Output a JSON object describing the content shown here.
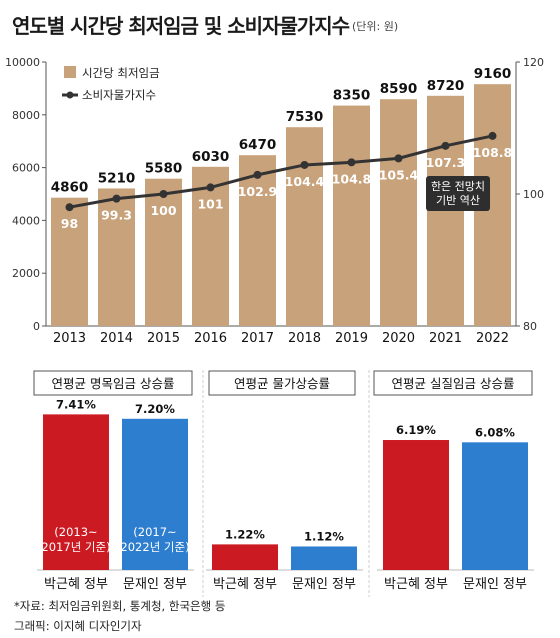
{
  "title": "연도별 시간당 최저임금 및 소비자물가지수",
  "unit": "(단위: 원)",
  "chart_data": [
    {
      "type": "bar+line",
      "categories": [
        "2013",
        "2014",
        "2015",
        "2016",
        "2017",
        "2018",
        "2019",
        "2020",
        "2021",
        "2022"
      ],
      "series": [
        {
          "name": "시간당 최저임금",
          "type": "bar",
          "axis": "left",
          "values": [
            4860,
            5210,
            5580,
            6030,
            6470,
            7530,
            8350,
            8590,
            8720,
            9160
          ]
        },
        {
          "name": "소비자물가지수",
          "type": "line",
          "axis": "right",
          "values": [
            98,
            99.3,
            100,
            101,
            102.9,
            104.4,
            104.8,
            105.4,
            107.3,
            108.8
          ]
        }
      ],
      "value_labels": {
        "bar": [
          "4860",
          "5210",
          "5580",
          "6030",
          "6470",
          "7530",
          "8350",
          "8590",
          "8720",
          "9160"
        ],
        "line": [
          "98",
          "99.3",
          "100",
          "101",
          "102.9",
          "104.4",
          "104.8",
          "105.4",
          "107.3",
          "108.8"
        ]
      },
      "y_left": {
        "range": [
          0,
          10000
        ],
        "ticks": [
          "0",
          "2000",
          "4000",
          "6000",
          "8000",
          "10000"
        ]
      },
      "y_right": {
        "range": [
          80,
          120
        ],
        "ticks": [
          "80",
          "100",
          "120"
        ]
      },
      "legend": [
        "시간당 최저임금",
        "소비자물가지수"
      ],
      "legend_position": "top-left",
      "annotation": "한은 전망치\n기반 역산",
      "colors": {
        "bar": "#c8a27a",
        "line": "#333333",
        "label": "#ffffff",
        "axis": "#555555"
      }
    },
    {
      "type": "bar",
      "title": "연평균 명목임금 상승률",
      "categories": [
        "박근혜 정부",
        "문재인 정부"
      ],
      "values": [
        7.41,
        7.2
      ],
      "value_labels": [
        "7.41%",
        "7.20%"
      ],
      "inner_labels": [
        "(2013~\n2017년 기준)",
        "(2017~\n2022년 기준)"
      ],
      "colors": [
        "#cc1a22",
        "#2e7ed0"
      ]
    },
    {
      "type": "bar",
      "title": "연평균 물가상승률",
      "categories": [
        "박근혜 정부",
        "문재인 정부"
      ],
      "values": [
        1.22,
        1.12
      ],
      "value_labels": [
        "1.22%",
        "1.12%"
      ],
      "colors": [
        "#cc1a22",
        "#2e7ed0"
      ]
    },
    {
      "type": "bar",
      "title": "연평균 실질임금 상승률",
      "categories": [
        "박근혜 정부",
        "문재인 정부"
      ],
      "values": [
        6.19,
        6.08
      ],
      "value_labels": [
        "6.19%",
        "6.08%"
      ],
      "colors": [
        "#cc1a22",
        "#2e7ed0"
      ]
    }
  ],
  "footer": {
    "source": "*자료: 최저임금위원회, 통계청, 한국은행 등",
    "credit": "그래픽: 이지혜 디자인기자"
  }
}
